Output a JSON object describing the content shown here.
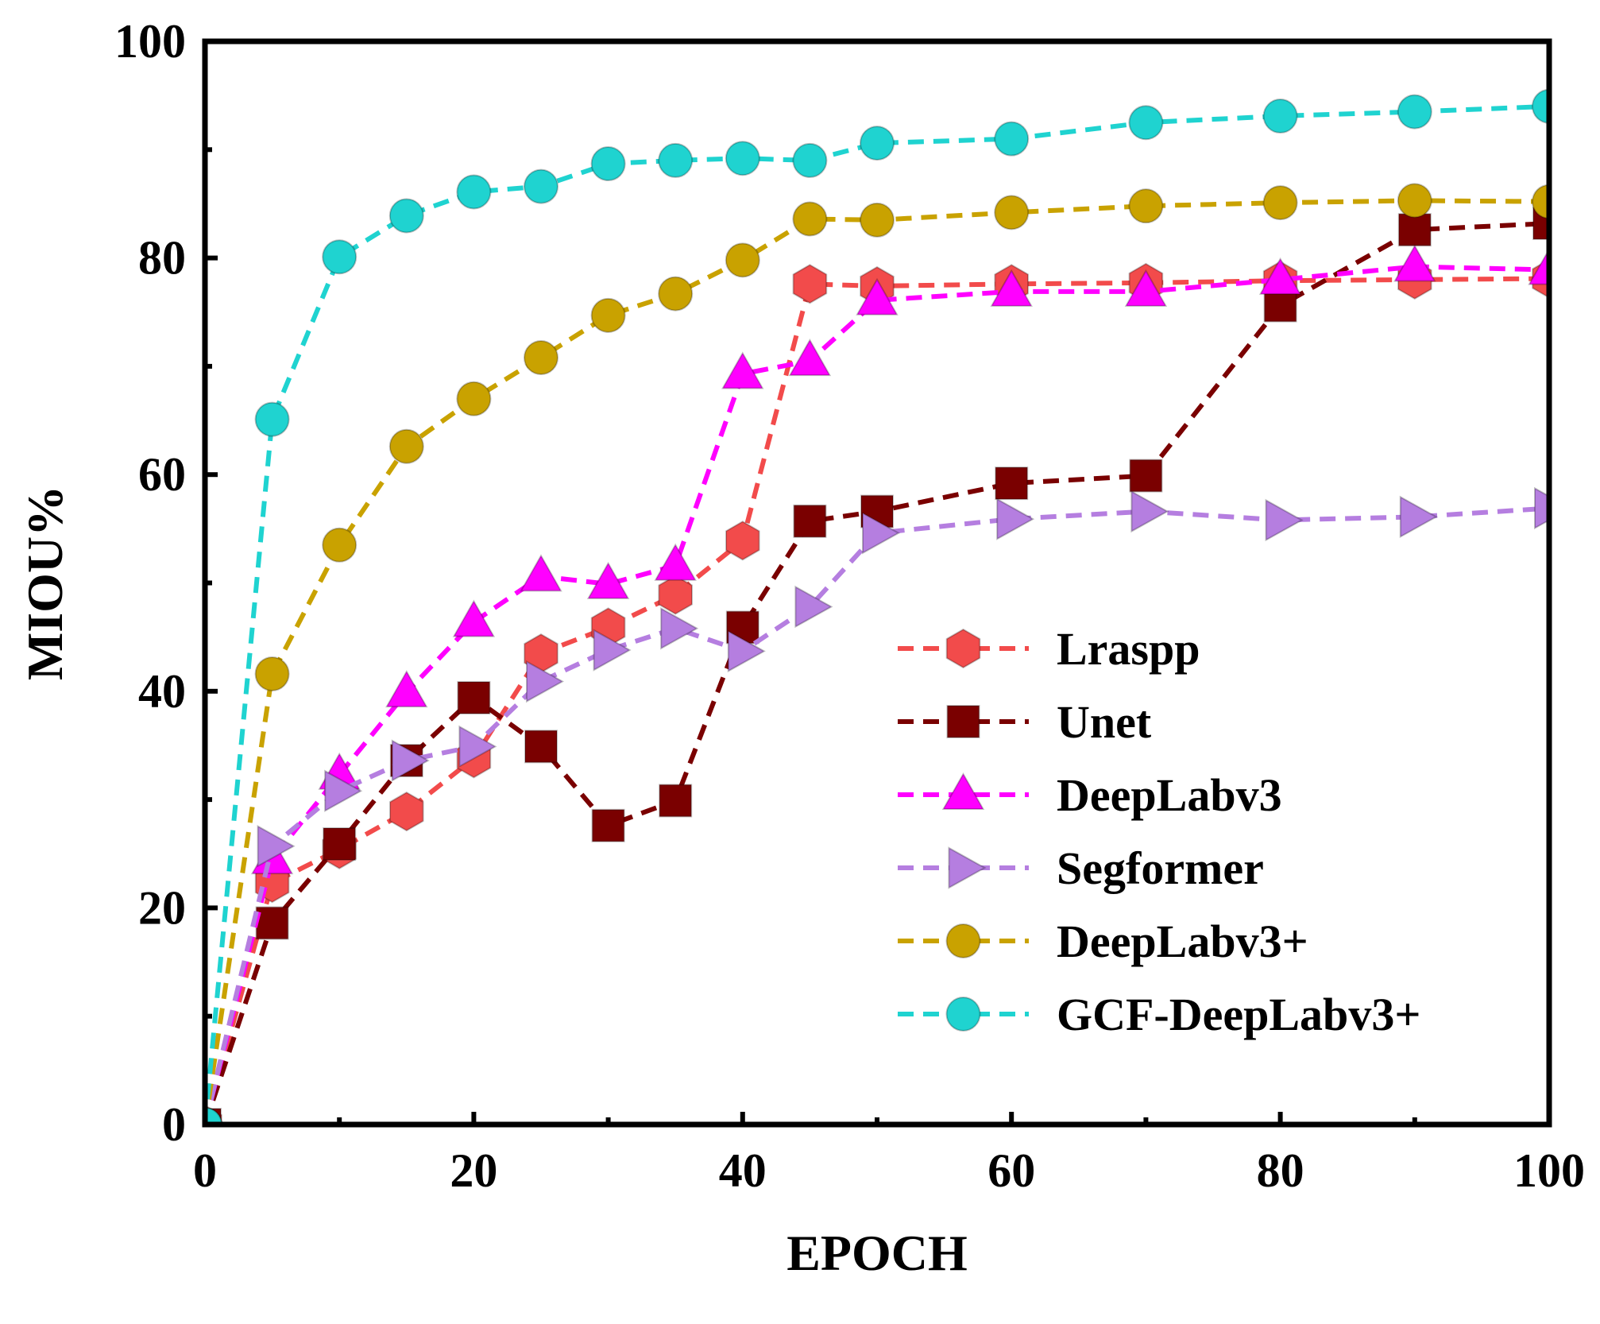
{
  "chart_data": {
    "type": "line",
    "title": "",
    "xlabel": "EPOCH",
    "ylabel": "MIOU%",
    "xlim": [
      0,
      100
    ],
    "ylim": [
      0,
      100
    ],
    "xticks": [
      0,
      20,
      40,
      60,
      80,
      100
    ],
    "yticks": [
      0,
      20,
      40,
      60,
      80,
      100
    ],
    "grid": false,
    "legend_position": "lower-right",
    "series": [
      {
        "name": "Lraspp",
        "color": "#f24b4b",
        "marker": "hexagon",
        "x": [
          0,
          5,
          10,
          15,
          20,
          25,
          30,
          35,
          40,
          45,
          50,
          60,
          70,
          80,
          90,
          100
        ],
        "y": [
          0,
          22.3,
          25.4,
          28.9,
          33.8,
          43.5,
          45.9,
          48.9,
          53.9,
          77.6,
          77.4,
          77.6,
          77.7,
          77.9,
          78.0,
          78.1
        ]
      },
      {
        "name": "Unet",
        "color": "#7a0000",
        "marker": "square",
        "x": [
          0,
          5,
          10,
          15,
          20,
          25,
          30,
          35,
          40,
          45,
          50,
          60,
          70,
          80,
          90,
          100
        ],
        "y": [
          0,
          18.6,
          25.9,
          33.6,
          39.4,
          34.9,
          27.6,
          29.9,
          45.9,
          55.7,
          56.6,
          59.2,
          59.9,
          75.6,
          82.6,
          83.2
        ]
      },
      {
        "name": "DeepLabv3",
        "color": "#ff00ff",
        "marker": "triangle-up",
        "x": [
          0,
          5,
          10,
          15,
          20,
          25,
          30,
          35,
          40,
          45,
          50,
          60,
          70,
          80,
          90,
          100
        ],
        "y": [
          0,
          24.5,
          32.3,
          39.9,
          46.4,
          50.6,
          49.9,
          51.6,
          69.3,
          70.5,
          76.1,
          76.9,
          76.9,
          78.0,
          79.2,
          78.9
        ]
      },
      {
        "name": "Segformer",
        "color": "#b57ee0",
        "marker": "triangle-right",
        "x": [
          0,
          5,
          10,
          15,
          20,
          25,
          30,
          35,
          40,
          45,
          50,
          60,
          70,
          80,
          90,
          100
        ],
        "y": [
          0,
          25.7,
          30.8,
          33.6,
          34.9,
          40.9,
          43.8,
          45.8,
          43.7,
          47.8,
          54.6,
          55.9,
          56.6,
          55.8,
          56.1,
          56.9
        ]
      },
      {
        "name": "DeepLabv3+",
        "color": "#c9a200",
        "marker": "circle",
        "x": [
          0,
          5,
          10,
          15,
          20,
          25,
          30,
          35,
          40,
          45,
          50,
          60,
          70,
          80,
          90,
          100
        ],
        "y": [
          0,
          41.6,
          53.5,
          62.6,
          67.0,
          70.8,
          74.7,
          76.7,
          79.8,
          83.6,
          83.5,
          84.2,
          84.8,
          85.1,
          85.3,
          85.2
        ]
      },
      {
        "name": "GCF-DeepLabv3+",
        "color": "#1fd3d0",
        "marker": "circle",
        "x": [
          0,
          5,
          10,
          15,
          20,
          25,
          30,
          35,
          40,
          45,
          50,
          60,
          70,
          80,
          90,
          100
        ],
        "y": [
          0,
          65.1,
          80.1,
          83.9,
          86.1,
          86.6,
          88.7,
          89.0,
          89.2,
          89.0,
          90.6,
          91.0,
          92.5,
          93.1,
          93.5,
          94.0
        ]
      }
    ]
  }
}
